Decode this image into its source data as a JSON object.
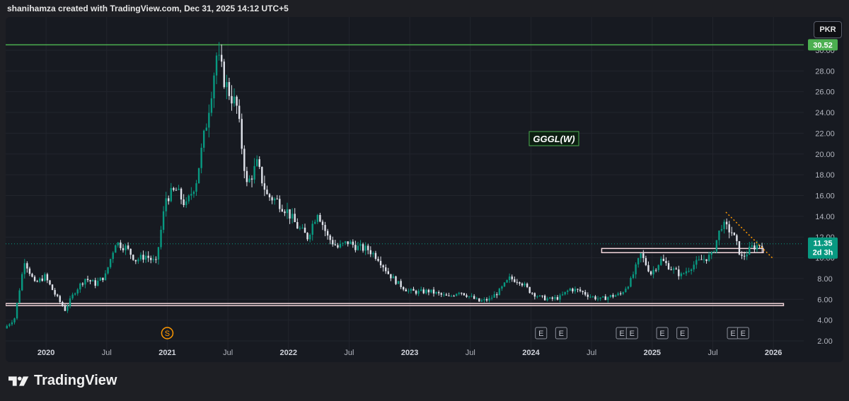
{
  "header": {
    "attribution": "shanihamza created with TradingView.com, Dec 31, 2025 14:12 UTC+5"
  },
  "currency_button": "PKR",
  "brand": {
    "name": "TradingView",
    "logo_icon": "tradingview-logo-icon"
  },
  "chart_data": {
    "type": "candlestick",
    "title": "GGGL(W)",
    "symbol": "GGGL",
    "interval": "W",
    "currency": "PKR",
    "y_axis": {
      "scale": "linear",
      "range": [
        2.0,
        31.0
      ],
      "tick_labels": [
        "2.00",
        "4.00",
        "6.00",
        "8.00",
        "10.00",
        "12.00",
        "14.00",
        "16.00",
        "18.00",
        "20.00",
        "22.00",
        "24.00",
        "26.00",
        "28.00",
        "30.00"
      ]
    },
    "x_axis": {
      "range": [
        "2019-09",
        "2026-04"
      ],
      "tick_labels": [
        {
          "label": "2020",
          "date": "2020-01",
          "bold": true
        },
        {
          "label": "Jul",
          "date": "2020-07",
          "bold": false
        },
        {
          "label": "2021",
          "date": "2021-01",
          "bold": true
        },
        {
          "label": "Jul",
          "date": "2021-07",
          "bold": false
        },
        {
          "label": "2022",
          "date": "2022-01",
          "bold": true
        },
        {
          "label": "Jul",
          "date": "2022-07",
          "bold": false
        },
        {
          "label": "2023",
          "date": "2023-01",
          "bold": true
        },
        {
          "label": "Jul",
          "date": "2023-07",
          "bold": false
        },
        {
          "label": "2024",
          "date": "2024-01",
          "bold": true
        },
        {
          "label": "Jul",
          "date": "2024-07",
          "bold": false
        },
        {
          "label": "2025",
          "date": "2025-01",
          "bold": true
        },
        {
          "label": "Jul",
          "date": "2025-07",
          "bold": false
        },
        {
          "label": "2026",
          "date": "2026-01",
          "bold": true
        }
      ]
    },
    "last_price": {
      "value": 11.35,
      "label": "11.35",
      "countdown": "2d 3h",
      "color": "#089981"
    },
    "resistance_line": {
      "value": 30.52,
      "label": "30.52",
      "color": "#4caf50"
    },
    "support_zones": [
      {
        "top": 5.6,
        "bottom": 5.4,
        "from": "2019-09",
        "to": "2026-02",
        "border": "#f3d6db"
      },
      {
        "top": 10.9,
        "bottom": 10.5,
        "from": "2024-08",
        "to": "2025-12",
        "border": "#f3d6db"
      }
    ],
    "trendline": {
      "from": {
        "date": "2025-08-10",
        "value": 14.4
      },
      "to": {
        "date": "2025-12-28",
        "value": 10.0
      },
      "color": "#ff9800",
      "style": "dotted"
    },
    "event_markers": [
      {
        "type": "S",
        "date": "2021-01",
        "color": "#ff9800"
      },
      {
        "type": "E",
        "date": "2024-02"
      },
      {
        "type": "E",
        "date": "2024-04"
      },
      {
        "type": "E",
        "date": "2024-10"
      },
      {
        "type": "E",
        "date": "2024-11"
      },
      {
        "type": "E",
        "date": "2025-02"
      },
      {
        "type": "E",
        "date": "2025-04"
      },
      {
        "type": "E",
        "date": "2025-09"
      },
      {
        "type": "E",
        "date": "2025-10"
      }
    ],
    "price_path": [
      [
        "2019-09",
        3.2
      ],
      [
        "2019-10",
        4.2
      ],
      [
        "2019-11",
        9.8
      ],
      [
        "2019-12",
        7.5
      ],
      [
        "2020-01",
        8.2
      ],
      [
        "2020-02",
        6.5
      ],
      [
        "2020-03",
        5.0
      ],
      [
        "2020-04",
        6.8
      ],
      [
        "2020-05",
        8.0
      ],
      [
        "2020-06",
        7.5
      ],
      [
        "2020-07",
        8.3
      ],
      [
        "2020-08",
        11.5
      ],
      [
        "2020-09",
        11.0
      ],
      [
        "2020-10",
        9.8
      ],
      [
        "2020-11",
        10.2
      ],
      [
        "2020-12",
        9.5
      ],
      [
        "2021-01",
        15.8
      ],
      [
        "2021-02",
        16.5
      ],
      [
        "2021-03",
        15.0
      ],
      [
        "2021-04",
        17.5
      ],
      [
        "2021-05",
        23.0
      ],
      [
        "2021-06",
        29.5
      ],
      [
        "2021-07",
        26.5
      ],
      [
        "2021-08",
        24.5
      ],
      [
        "2021-09",
        17.0
      ],
      [
        "2021-10",
        19.0
      ],
      [
        "2021-11",
        16.0
      ],
      [
        "2021-12",
        15.5
      ],
      [
        "2022-01",
        14.5
      ],
      [
        "2022-02",
        13.0
      ],
      [
        "2022-03",
        12.0
      ],
      [
        "2022-04",
        14.5
      ],
      [
        "2022-05",
        12.0
      ],
      [
        "2022-06",
        11.0
      ],
      [
        "2022-07",
        11.5
      ],
      [
        "2022-08",
        11.0
      ],
      [
        "2022-09",
        10.8
      ],
      [
        "2022-10",
        10.0
      ],
      [
        "2022-11",
        8.5
      ],
      [
        "2022-12",
        7.5
      ],
      [
        "2023-01",
        6.8
      ],
      [
        "2023-02",
        6.7
      ],
      [
        "2023-03",
        6.8
      ],
      [
        "2023-04",
        6.5
      ],
      [
        "2023-05",
        6.2
      ],
      [
        "2023-06",
        6.8
      ],
      [
        "2023-07",
        6.3
      ],
      [
        "2023-08",
        5.8
      ],
      [
        "2023-09",
        6.0
      ],
      [
        "2023-10",
        6.8
      ],
      [
        "2023-11",
        8.0
      ],
      [
        "2023-12",
        7.8
      ],
      [
        "2024-01",
        6.8
      ],
      [
        "2024-02",
        6.2
      ],
      [
        "2024-03",
        6.0
      ],
      [
        "2024-04",
        6.2
      ],
      [
        "2024-05",
        7.0
      ],
      [
        "2024-06",
        6.8
      ],
      [
        "2024-07",
        6.3
      ],
      [
        "2024-08",
        6.0
      ],
      [
        "2024-09",
        6.3
      ],
      [
        "2024-10",
        6.5
      ],
      [
        "2024-11",
        7.8
      ],
      [
        "2024-12",
        10.3
      ],
      [
        "2025-01",
        8.5
      ],
      [
        "2025-02",
        9.8
      ],
      [
        "2025-03",
        9.0
      ],
      [
        "2025-04",
        8.3
      ],
      [
        "2025-05",
        9.2
      ],
      [
        "2025-06",
        9.8
      ],
      [
        "2025-07",
        10.2
      ],
      [
        "2025-08",
        13.2
      ],
      [
        "2025-09",
        12.5
      ],
      [
        "2025-10",
        10.0
      ],
      [
        "2025-11",
        11.0
      ],
      [
        "2025-12",
        11.35
      ]
    ]
  }
}
